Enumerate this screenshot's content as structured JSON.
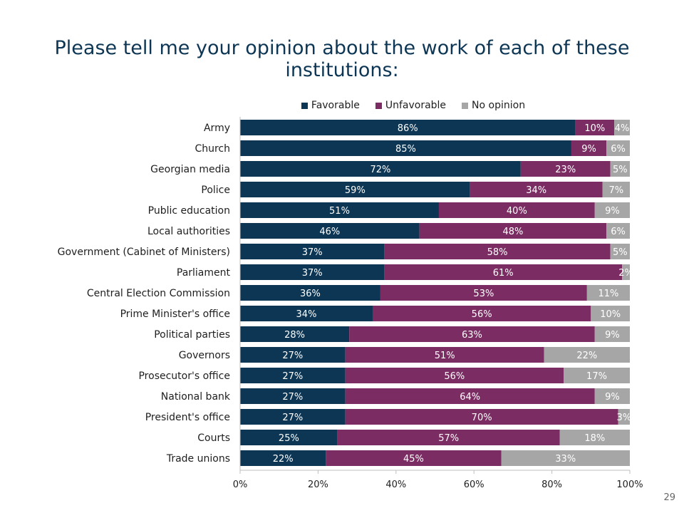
{
  "title": "Please tell me your opinion about the work of each of these institutions:",
  "page_number": "29",
  "colors": {
    "favorable": "#0c3654",
    "unfavorable": "#7b2c63",
    "no_opinion": "#a6a6a6",
    "axis_text": "#1e1e1e"
  },
  "chart_data": {
    "type": "bar",
    "orientation": "horizontal",
    "stacked": true,
    "categories": [
      "Army",
      "Church",
      "Georgian media",
      "Police",
      "Public education",
      "Local authorities",
      "Government (Cabinet of Ministers)",
      "Parliament",
      "Central Election Commission",
      "Prime Minister's office",
      "Political parties",
      "Governors",
      "Prosecutor's office",
      "National bank",
      "President's office",
      "Courts",
      "Trade unions"
    ],
    "series": [
      {
        "name": "Favorable",
        "values": [
          86,
          85,
          72,
          59,
          51,
          46,
          37,
          37,
          36,
          34,
          28,
          27,
          27,
          27,
          27,
          25,
          22
        ]
      },
      {
        "name": "Unfavorable",
        "values": [
          10,
          9,
          23,
          34,
          40,
          48,
          58,
          61,
          53,
          56,
          63,
          51,
          56,
          64,
          70,
          57,
          45
        ]
      },
      {
        "name": "No opinion",
        "values": [
          4,
          6,
          5,
          7,
          9,
          6,
          5,
          2,
          11,
          10,
          9,
          22,
          17,
          9,
          3,
          18,
          33
        ]
      }
    ],
    "xlim": [
      0,
      100
    ],
    "xticks": [
      "0%",
      "20%",
      "40%",
      "60%",
      "80%",
      "100%"
    ],
    "value_suffix": "%",
    "legend": "top"
  }
}
